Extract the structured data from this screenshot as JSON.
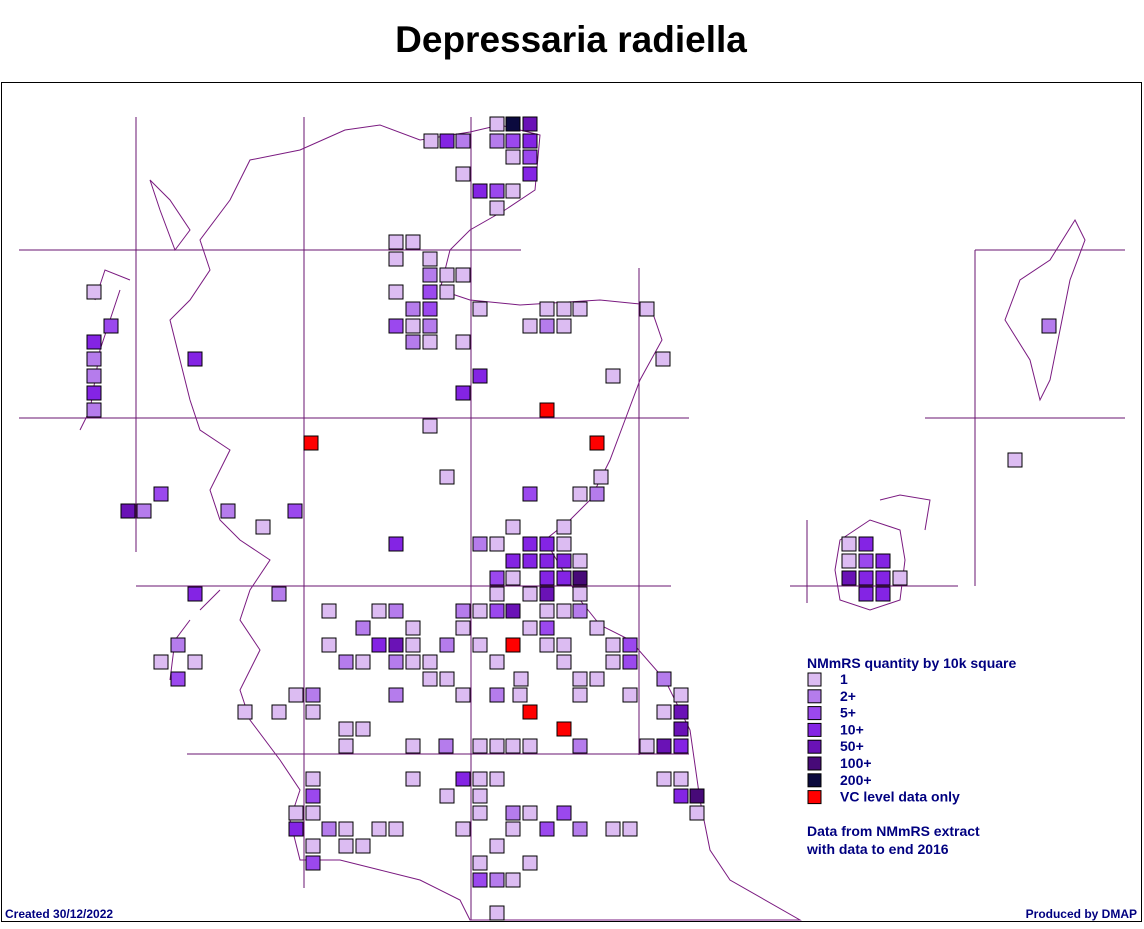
{
  "title": "Depressaria radiella",
  "legend": {
    "title": "NMmRS quantity by 10k square",
    "items": [
      {
        "label": "1",
        "color": "#dcbcf2"
      },
      {
        "label": "2+",
        "color": "#b57cec"
      },
      {
        "label": "5+",
        "color": "#9b48ee"
      },
      {
        "label": "10+",
        "color": "#8424e4"
      },
      {
        "label": "50+",
        "color": "#6a12b6"
      },
      {
        "label": "100+",
        "color": "#470a78"
      },
      {
        "label": "200+",
        "color": "#0b0a3e"
      },
      {
        "label": "VC level data only",
        "color": "#ff0000"
      }
    ]
  },
  "note": [
    "Data from NMmRS extract",
    "with data to end 2016"
  ],
  "footer": {
    "created": "Created 30/12/2022",
    "produced": "Produced by DMAP"
  }
}
